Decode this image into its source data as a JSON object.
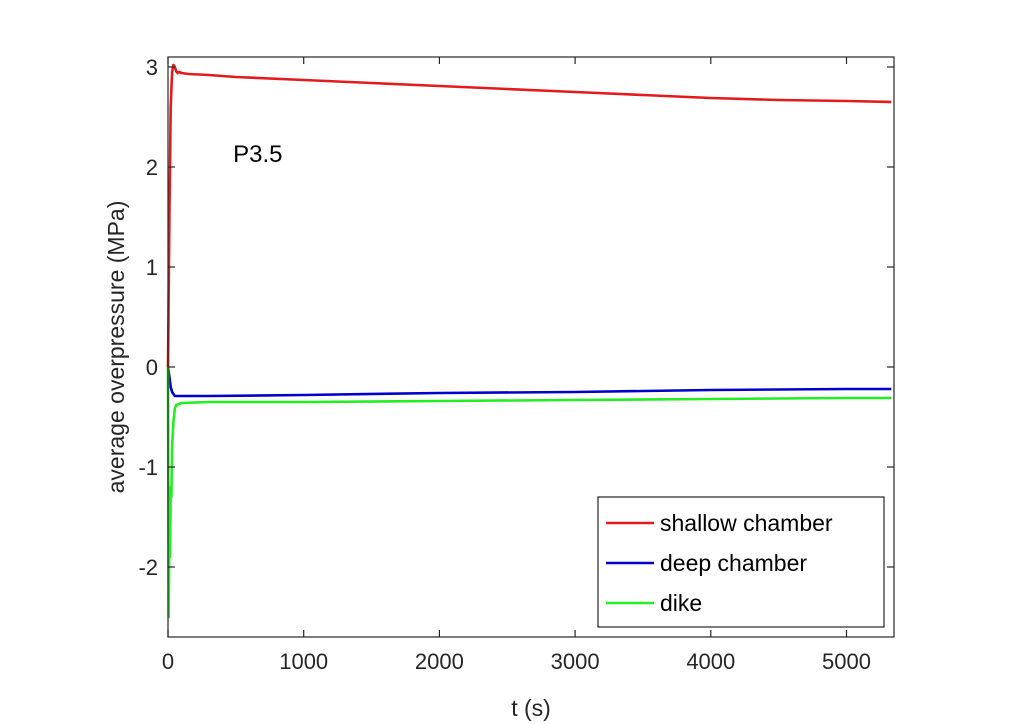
{
  "chart_data": {
    "type": "line",
    "title": "",
    "xlabel": "t (s)",
    "ylabel": "average overpressure (MPa)",
    "xlim": [
      0,
      5350
    ],
    "ylim": [
      -2.7,
      3.1
    ],
    "xticks": [
      0,
      1000,
      2000,
      3000,
      4000,
      5000
    ],
    "xtick_labels": [
      "0",
      "1000",
      "2000",
      "3000",
      "4000",
      "5000"
    ],
    "yticks": [
      -2,
      -1,
      0,
      1,
      2,
      3
    ],
    "ytick_labels": [
      "-2",
      "-1",
      "0",
      "1",
      "2",
      "3"
    ],
    "grid": false,
    "legend_position": "bottom-right",
    "annotation": {
      "text": "P3.5",
      "x": 480,
      "y": 2.05
    },
    "series": [
      {
        "name": "shallow chamber",
        "color": "#e41a1c",
        "x": [
          0,
          10,
          20,
          30,
          40,
          50,
          60,
          70,
          80,
          100,
          150,
          300,
          500,
          1000,
          1500,
          2000,
          2500,
          3000,
          3500,
          4000,
          4500,
          5000,
          5330
        ],
        "y": [
          0,
          1.5,
          2.6,
          2.95,
          3.02,
          3.0,
          2.96,
          2.94,
          2.95,
          2.94,
          2.93,
          2.92,
          2.9,
          2.87,
          2.84,
          2.81,
          2.78,
          2.75,
          2.72,
          2.69,
          2.67,
          2.66,
          2.65
        ]
      },
      {
        "name": "deep chamber",
        "color": "#0000cc",
        "x": [
          0,
          10,
          20,
          30,
          50,
          100,
          300,
          1000,
          2000,
          3000,
          4000,
          5000,
          5330
        ],
        "y": [
          0,
          -0.1,
          -0.2,
          -0.25,
          -0.29,
          -0.29,
          -0.29,
          -0.28,
          -0.26,
          -0.25,
          -0.23,
          -0.22,
          -0.22
        ]
      },
      {
        "name": "dike",
        "color": "#22ee22",
        "x": [
          0,
          5,
          10,
          15,
          20,
          25,
          30,
          40,
          50,
          60,
          80,
          100,
          300,
          1000,
          2000,
          3000,
          4000,
          5000,
          5330
        ],
        "y": [
          0,
          -2.5,
          -1.6,
          -1.9,
          -1.2,
          -1.3,
          -0.8,
          -0.55,
          -0.42,
          -0.38,
          -0.37,
          -0.36,
          -0.35,
          -0.35,
          -0.34,
          -0.33,
          -0.32,
          -0.31,
          -0.31
        ]
      }
    ]
  }
}
